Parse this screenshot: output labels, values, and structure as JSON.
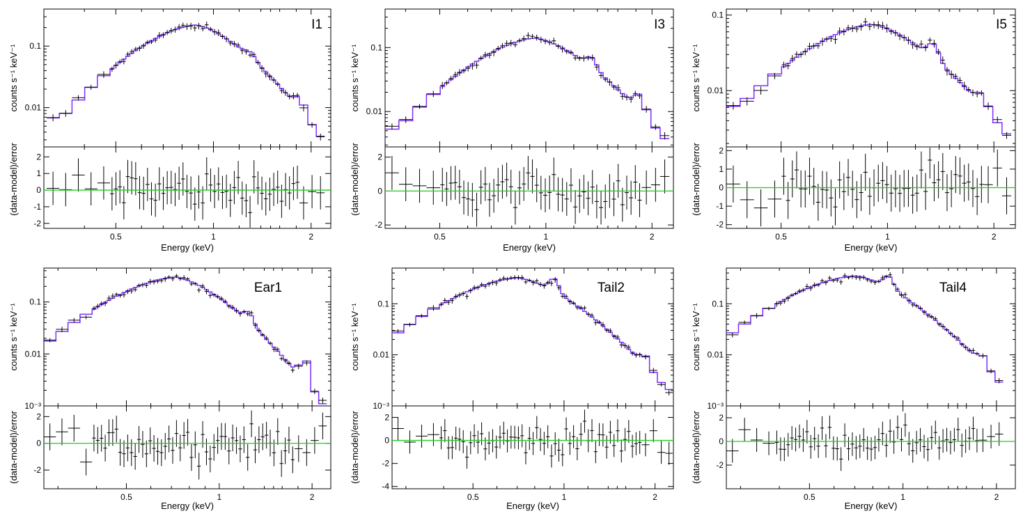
{
  "colors": {
    "data": "#000000",
    "model": "#7b2ff7",
    "zero_line": "#22cc22"
  },
  "chart_data": [
    {
      "type": "line",
      "label": "I1",
      "xlabel": "Energy (keV)",
      "ylabel_top": "counts s⁻¹ keV⁻¹",
      "ylabel_bottom": "(data-model)/error",
      "x_scale": "log",
      "y_scale_top": "log",
      "xlim": [
        0.3,
        2.3
      ],
      "ylim_top": [
        0.0023,
        0.4
      ],
      "ylim_bottom": [
        -2.3,
        2.6
      ],
      "x_ticks": [
        {
          "v": 0.5,
          "label": "0.5"
        },
        {
          "v": 1,
          "label": "1"
        },
        {
          "v": 2,
          "label": "2"
        }
      ],
      "y_ticks_top": [
        {
          "v": 0.01,
          "label": "0.01"
        },
        {
          "v": 0.1,
          "label": "0.1"
        }
      ],
      "y_ticks_bottom": [
        {
          "v": -2,
          "label": "-2"
        },
        {
          "v": -1,
          "label": "-1"
        },
        {
          "v": 0,
          "label": "0"
        },
        {
          "v": 1,
          "label": "1"
        },
        {
          "v": 2,
          "label": "2"
        }
      ],
      "peak_e": 0.88,
      "peak_y": 0.22,
      "start_e": 0.34,
      "start_y": 0.0068,
      "end_e": 2.2,
      "end_y": 0.0028,
      "bumps": [
        [
          1.3,
          0.2
        ],
        [
          1.85,
          0.45
        ]
      ],
      "n_points": 55,
      "resid_spread": 1.2
    },
    {
      "type": "line",
      "label": "I3",
      "xlabel": "Energy (keV)",
      "ylabel_top": "counts s⁻¹ keV⁻¹",
      "ylabel_bottom": "(data-model)/error",
      "x_scale": "log",
      "y_scale_top": "log",
      "xlim": [
        0.35,
        2.3
      ],
      "ylim_top": [
        0.0028,
        0.4
      ],
      "ylim_bottom": [
        -2.2,
        2.6
      ],
      "x_ticks": [
        {
          "v": 0.5,
          "label": "0.5"
        },
        {
          "v": 1,
          "label": "1"
        },
        {
          "v": 2,
          "label": "2"
        }
      ],
      "y_ticks_top": [
        {
          "v": 0.01,
          "label": "0.01"
        },
        {
          "v": 0.1,
          "label": "0.1"
        }
      ],
      "y_ticks_bottom": [
        {
          "v": -2,
          "label": "-2"
        },
        {
          "v": 0,
          "label": "0"
        },
        {
          "v": 2,
          "label": "2"
        }
      ],
      "peak_e": 0.93,
      "peak_y": 0.14,
      "start_e": 0.38,
      "start_y": 0.0053,
      "end_e": 2.2,
      "end_y": 0.0035,
      "bumps": [
        [
          1.35,
          0.35
        ],
        [
          1.85,
          0.6
        ]
      ],
      "n_points": 55,
      "resid_spread": 1.1
    },
    {
      "type": "line",
      "label": "I5",
      "xlabel": "Energy (keV)",
      "ylabel_top": "counts s⁻¹ keV⁻¹",
      "ylabel_bottom": "(data-model)/error",
      "x_scale": "log",
      "y_scale_top": "log",
      "xlim": [
        0.35,
        2.3
      ],
      "ylim_top": [
        0.0018,
        0.12
      ],
      "ylim_bottom": [
        -2.2,
        2.2
      ],
      "x_ticks": [
        {
          "v": 0.5,
          "label": "0.5"
        },
        {
          "v": 1,
          "label": "1"
        },
        {
          "v": 2,
          "label": "2"
        }
      ],
      "y_ticks_top": [
        {
          "v": 0.01,
          "label": "0.01"
        },
        {
          "v": 0.1,
          "label": "0.1"
        }
      ],
      "y_ticks_bottom": [
        {
          "v": -2,
          "label": "-2"
        },
        {
          "v": -1,
          "label": "-1"
        },
        {
          "v": 0,
          "label": "0"
        },
        {
          "v": 1,
          "label": "1"
        },
        {
          "v": 2,
          "label": "2"
        }
      ],
      "peak_e": 0.9,
      "peak_y": 0.075,
      "start_e": 0.38,
      "start_y": 0.0062,
      "end_e": 2.2,
      "end_y": 0.0025,
      "bumps": [
        [
          1.35,
          0.45
        ],
        [
          1.85,
          0.35
        ]
      ],
      "n_points": 50,
      "resid_spread": 1.1
    },
    {
      "type": "line",
      "label": "Ear1",
      "xlabel": "Energy (keV)",
      "ylabel_top": "counts s⁻¹ keV⁻¹",
      "ylabel_bottom": "(data-model)/error",
      "x_scale": "log",
      "y_scale_top": "log",
      "xlim": [
        0.27,
        2.3
      ],
      "ylim_top": [
        0.001,
        0.45
      ],
      "ylim_bottom": [
        -3.4,
        2.8
      ],
      "x_ticks": [
        {
          "v": 0.5,
          "label": "0.5"
        },
        {
          "v": 1,
          "label": "1"
        },
        {
          "v": 2,
          "label": "2"
        }
      ],
      "y_ticks_top": [
        {
          "v": 0.001,
          "label": "10⁻³"
        },
        {
          "v": 0.01,
          "label": "0.01"
        },
        {
          "v": 0.1,
          "label": "0.1"
        }
      ],
      "y_ticks_bottom": [
        {
          "v": -2,
          "label": "-2"
        },
        {
          "v": 0,
          "label": "0"
        },
        {
          "v": 2,
          "label": "2"
        }
      ],
      "peak_e": 0.72,
      "peak_y": 0.3,
      "start_e": 0.28,
      "start_y": 0.017,
      "end_e": 2.15,
      "end_y": 0.0011,
      "bumps": [
        [
          1.25,
          0.45
        ],
        [
          1.9,
          1.1
        ]
      ],
      "n_points": 55,
      "resid_spread": 1.3
    },
    {
      "type": "line",
      "label": "Tail2",
      "xlabel": "Energy (keV)",
      "ylabel_top": "counts s⁻¹ keV⁻¹",
      "ylabel_bottom": "(data-model)/error",
      "x_scale": "log",
      "y_scale_top": "log",
      "xlim": [
        0.27,
        2.3
      ],
      "ylim_top": [
        0.001,
        0.5
      ],
      "ylim_bottom": [
        -4.2,
        3.0
      ],
      "x_ticks": [
        {
          "v": 0.5,
          "label": "0.5"
        },
        {
          "v": 1,
          "label": "1"
        },
        {
          "v": 2,
          "label": "2"
        }
      ],
      "y_ticks_top": [
        {
          "v": 0.001,
          "label": "10⁻³"
        },
        {
          "v": 0.01,
          "label": "0.01"
        },
        {
          "v": 0.1,
          "label": "0.1"
        }
      ],
      "y_ticks_bottom": [
        {
          "v": -4,
          "label": "-4"
        },
        {
          "v": -2,
          "label": "-2"
        },
        {
          "v": 0,
          "label": "0"
        },
        {
          "v": 2,
          "label": "2"
        }
      ],
      "peak_e": 0.7,
      "peak_y": 0.32,
      "start_e": 0.28,
      "start_y": 0.026,
      "end_e": 2.2,
      "end_y": 0.0021,
      "bumps": [
        [
          0.93,
          0.6
        ],
        [
          1.85,
          0.45
        ]
      ],
      "n_points": 60,
      "resid_spread": 1.3
    },
    {
      "type": "line",
      "label": "Tail4",
      "xlabel": "Energy (keV)",
      "ylabel_top": "counts s⁻¹ keV⁻¹",
      "ylabel_bottom": "(data-model)/error",
      "x_scale": "log",
      "y_scale_top": "log",
      "xlim": [
        0.27,
        2.3
      ],
      "ylim_top": [
        0.001,
        0.5
      ],
      "ylim_bottom": [
        -4.0,
        3.0
      ],
      "x_ticks": [
        {
          "v": 0.5,
          "label": "0.5"
        },
        {
          "v": 1,
          "label": "1"
        },
        {
          "v": 2,
          "label": "2"
        }
      ],
      "y_ticks_top": [
        {
          "v": 0.001,
          "label": "10⁻³"
        },
        {
          "v": 0.01,
          "label": "0.01"
        },
        {
          "v": 0.1,
          "label": "0.1"
        }
      ],
      "y_ticks_bottom": [
        {
          "v": -2,
          "label": "-2"
        },
        {
          "v": 0,
          "label": "0"
        },
        {
          "v": 2,
          "label": "2"
        }
      ],
      "peak_e": 0.7,
      "peak_y": 0.35,
      "start_e": 0.28,
      "start_y": 0.026,
      "end_e": 2.1,
      "end_y": 0.0024,
      "bumps": [
        [
          0.9,
          0.55
        ],
        [
          1.8,
          0.4
        ]
      ],
      "n_points": 60,
      "resid_spread": 1.2
    }
  ]
}
